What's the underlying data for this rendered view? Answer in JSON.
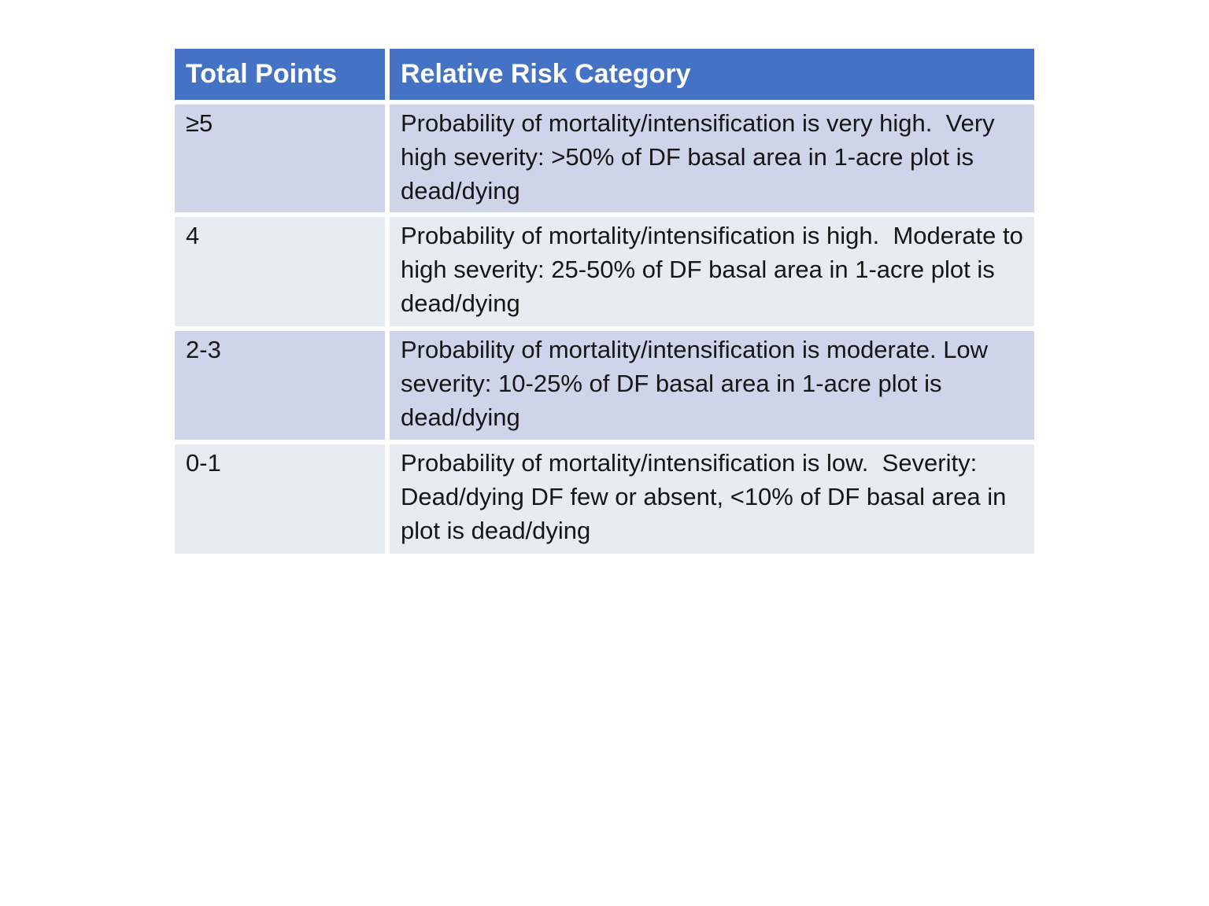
{
  "page": {
    "background_color": "#FFFFFF",
    "type": "slide-table"
  },
  "table": {
    "columns": [
      {
        "label": "Total Points"
      },
      {
        "label": "Relative Risk Category"
      }
    ],
    "rows": [
      {
        "points": "≥5",
        "category": "Probability of mortality/intensification is very high.  Very high severity: >50% of DF basal area in 1-acre plot is dead/dying"
      },
      {
        "points": "4",
        "category": "Probability of mortality/intensification is high.  Moderate to high severity: 25-50% of DF basal area in 1-acre plot is dead/dying"
      },
      {
        "points": "2-3",
        "category": "Probability of mortality/intensification is moderate. Low severity: 10-25% of DF basal area in 1-acre plot is dead/dying"
      },
      {
        "points": "0-1",
        "category": "Probability of mortality/intensification is low.  Severity: Dead/dying DF few or absent, <10% of DF basal area in plot is dead/dying"
      }
    ],
    "colors": {
      "header_bg": "#4472C4",
      "header_text": "#FFFFFF",
      "band_dark": "#CED4E9",
      "band_light": "#E9EBF3",
      "body_text": "#161616",
      "divider": "#FFFFFF"
    }
  }
}
